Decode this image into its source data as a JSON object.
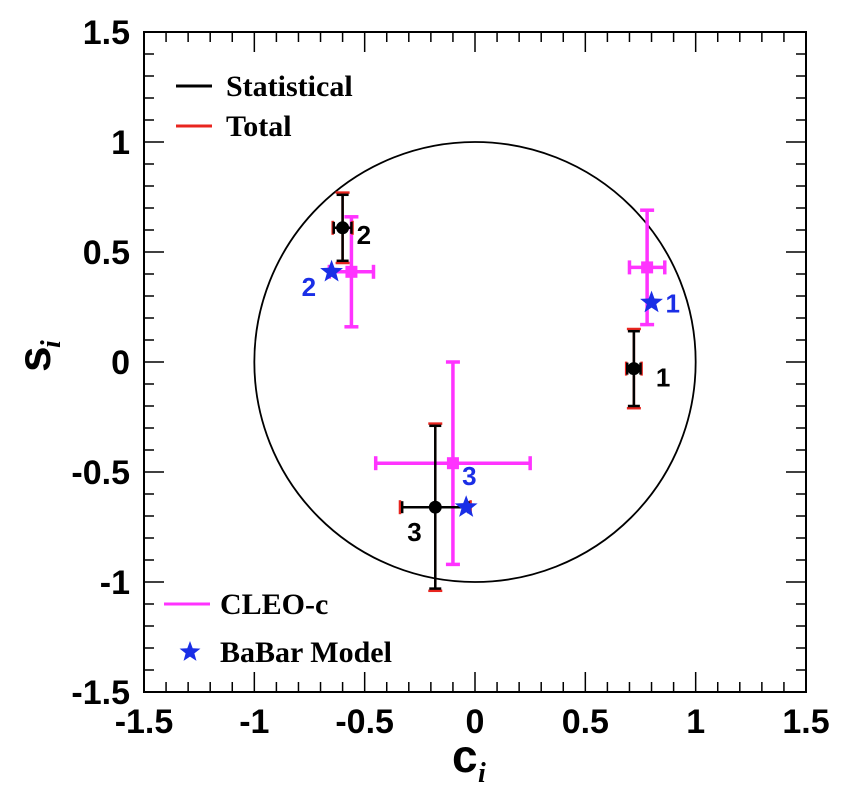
{
  "chart_data": {
    "type": "scatter",
    "xlabel": "c",
    "xlabel_sub": "i",
    "ylabel": "s",
    "ylabel_sub": "i",
    "xlim": [
      -1.5,
      1.5
    ],
    "ylim": [
      -1.5,
      1.5
    ],
    "xticks": [
      -1.5,
      -1,
      -0.5,
      0,
      0.5,
      1,
      1.5
    ],
    "xtick_labels": [
      "-1.5",
      "-1",
      "-0.5",
      "0",
      "0.5",
      "1",
      "1.5"
    ],
    "yticks": [
      -1.5,
      -1,
      -0.5,
      0,
      0.5,
      1,
      1.5
    ],
    "ytick_labels": [
      "-1.5",
      "-1",
      "-0.5",
      "0",
      "0.5",
      "1",
      "1.5"
    ],
    "grid": false,
    "unit_circle": true,
    "legends": [
      {
        "placement": "top-left",
        "entries": [
          {
            "label": "Statistical",
            "color": "#000000",
            "marker": "line"
          },
          {
            "label": "Total",
            "color": "#e8251f",
            "marker": "line"
          }
        ]
      },
      {
        "placement": "bottom-left",
        "entries": [
          {
            "label": "CLEO-c",
            "color": "#ff33ff",
            "marker": "line"
          },
          {
            "label": "BaBar Model",
            "color": "#1a2ee6",
            "marker": "star"
          }
        ]
      }
    ],
    "series": [
      {
        "name": "Statistical",
        "color": "#000000",
        "total_color": "#e8251f",
        "points": [
          {
            "label": "1",
            "x": 0.72,
            "y": -0.03,
            "xerr_stat": 0.03,
            "xerr_tot": 0.035,
            "yerr_stat": 0.17,
            "yerr_tot": 0.18
          },
          {
            "label": "2",
            "x": -0.6,
            "y": 0.61,
            "xerr_stat": 0.04,
            "xerr_tot": 0.045,
            "yerr_stat": 0.15,
            "yerr_tot": 0.16
          },
          {
            "label": "3",
            "x": -0.18,
            "y": -0.66,
            "xerr_stat": 0.15,
            "xerr_tot": 0.16,
            "yerr_stat": 0.37,
            "yerr_tot": 0.38
          }
        ]
      },
      {
        "name": "CLEO-c",
        "color": "#ff33ff",
        "points": [
          {
            "label": "",
            "x": 0.78,
            "y": 0.43,
            "xerr": 0.08,
            "yerr": 0.26
          },
          {
            "label": "",
            "x": -0.56,
            "y": 0.41,
            "xerr": 0.1,
            "yerr": 0.25
          },
          {
            "label": "",
            "x": -0.1,
            "y": -0.46,
            "xerr": 0.35,
            "yerr": 0.46
          }
        ]
      },
      {
        "name": "BaBar Model",
        "color": "#1a2ee6",
        "points": [
          {
            "label": "1",
            "x": 0.8,
            "y": 0.27
          },
          {
            "label": "2",
            "x": -0.65,
            "y": 0.41
          },
          {
            "label": "3",
            "x": -0.04,
            "y": -0.66
          }
        ]
      }
    ]
  }
}
